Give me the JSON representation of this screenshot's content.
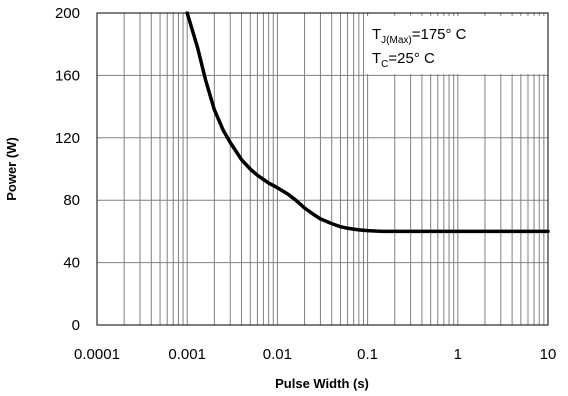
{
  "chart_data": {
    "type": "line",
    "xlabel": "Pulse Width (s)",
    "ylabel": "Power (W)",
    "x_scale": "log",
    "xlim": [
      0.0001,
      10
    ],
    "ylim": [
      0,
      200
    ],
    "x_ticks": [
      "0.0001",
      "0.001",
      "0.01",
      "0.1",
      "1",
      "10"
    ],
    "y_ticks": [
      "0",
      "40",
      "80",
      "120",
      "160",
      "200"
    ],
    "grid": true,
    "legend": {
      "placement": "top-right",
      "line1": {
        "symbol": "T",
        "sub": "J(Max)",
        "rest": "=175° C"
      },
      "line2": {
        "symbol": "T",
        "sub": "C",
        "rest": "=25° C"
      }
    },
    "series": [
      {
        "color": "#000000",
        "x": [
          0.001,
          0.0013,
          0.0016,
          0.002,
          0.0025,
          0.003,
          0.004,
          0.005,
          0.006,
          0.008,
          0.01,
          0.013,
          0.016,
          0.02,
          0.025,
          0.03,
          0.04,
          0.05,
          0.06,
          0.08,
          0.1,
          0.15,
          0.2,
          0.5,
          1,
          2,
          5,
          10
        ],
        "y": [
          200,
          178,
          157,
          138,
          125,
          117,
          106,
          100,
          96,
          91,
          88,
          84,
          80,
          75,
          71,
          68,
          65,
          63,
          62,
          61,
          60.5,
          60,
          60,
          60,
          60,
          60,
          60,
          60
        ]
      }
    ]
  }
}
